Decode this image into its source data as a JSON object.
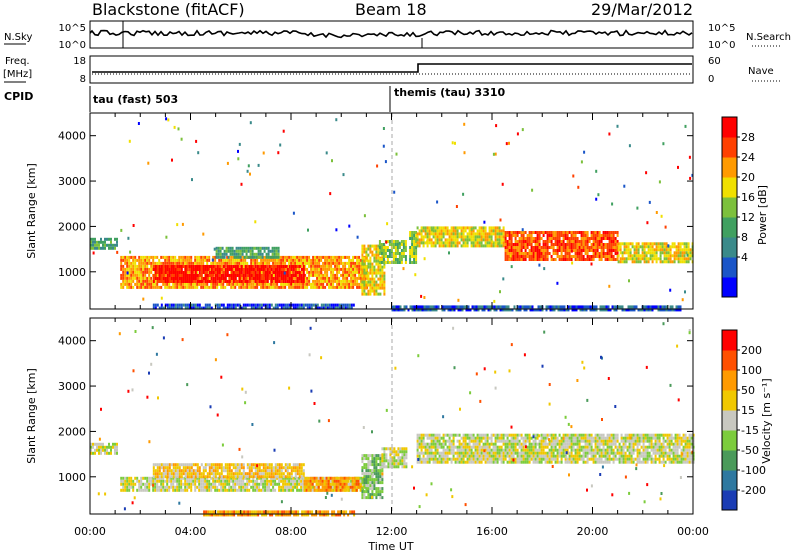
{
  "header": {
    "station": "Blackstone (fitACF)",
    "beam": "Beam 18",
    "date": "29/Mar/2012"
  },
  "top_panels": {
    "nsky_label": "N.Sky",
    "nsearch_label": "N.Search",
    "nsky_ticks": [
      "10^5",
      "10^0"
    ],
    "nsearch_ticks": [
      "10^5",
      "10^0"
    ],
    "freq_label_1": "Freq.",
    "freq_label_2": "[MHz]",
    "freq_ticks": [
      "18",
      "8"
    ],
    "nave_label": "Nave",
    "nave_ticks": [
      "60",
      "0"
    ],
    "cpid_label": "CPID",
    "cpid_segments": [
      "tau (fast) 503",
      "themis (tau) 3310"
    ]
  },
  "chart_data": [
    {
      "type": "heatmap",
      "name": "power",
      "ylabel": "Slant Range [km]",
      "xlabel": "Time UT",
      "x_ticks": [
        "00:00",
        "04:00",
        "08:00",
        "12:00",
        "16:00",
        "20:00",
        "00:00"
      ],
      "xlim_hours": [
        0,
        24
      ],
      "y_ticks": [
        1000,
        2000,
        3000,
        4000
      ],
      "ylim_km": [
        180,
        4500
      ],
      "colorbar": {
        "label": "Power [dB]",
        "ticks": [
          "28",
          "24",
          "20",
          "16",
          "12",
          "8",
          "4"
        ],
        "colors": [
          "#0000ff",
          "#1a55c8",
          "#3a8a8a",
          "#40a060",
          "#7cc03c",
          "#f0e000",
          "#ff9a00",
          "#ff4000",
          "#ff0000"
        ]
      },
      "bands": [
        {
          "t0": 0.0,
          "t1": 1.1,
          "r0": 1550,
          "r1": 1750,
          "level": 3
        },
        {
          "t0": 1.2,
          "t1": 11.0,
          "r0": 650,
          "r1": 1350,
          "level": 6
        },
        {
          "t0": 2.5,
          "t1": 8.5,
          "r0": 800,
          "r1": 1150,
          "level": 8
        },
        {
          "t0": 5.0,
          "t1": 7.5,
          "r0": 1300,
          "r1": 1550,
          "level": 3
        },
        {
          "t0": 10.8,
          "t1": 11.7,
          "r0": 500,
          "r1": 1600,
          "level": 5
        },
        {
          "t0": 11.5,
          "t1": 12.6,
          "r0": 1200,
          "r1": 1700,
          "level": 4
        },
        {
          "t0": 12.7,
          "t1": 13.0,
          "r0": 1200,
          "r1": 1900,
          "level": 4
        },
        {
          "t0": 13.0,
          "t1": 16.5,
          "r0": 1550,
          "r1": 2000,
          "level": 5
        },
        {
          "t0": 16.5,
          "t1": 21.0,
          "r0": 1250,
          "r1": 1900,
          "level": 7
        },
        {
          "t0": 21.0,
          "t1": 24.0,
          "r0": 1250,
          "r1": 1650,
          "level": 5
        },
        {
          "t0": 2.5,
          "t1": 10.5,
          "r0": 180,
          "r1": 300,
          "level": 1
        },
        {
          "t0": 12.0,
          "t1": 23.5,
          "r0": 180,
          "r1": 260,
          "level": 1
        }
      ]
    },
    {
      "type": "heatmap",
      "name": "velocity",
      "ylabel": "Slant Range [km]",
      "xlabel": "Time UT",
      "x_ticks": [
        "00:00",
        "04:00",
        "08:00",
        "12:00",
        "16:00",
        "20:00",
        "00:00"
      ],
      "xlim_hours": [
        0,
        24
      ],
      "y_ticks": [
        1000,
        2000,
        3000,
        4000
      ],
      "ylim_km": [
        180,
        4500
      ],
      "colorbar": {
        "label": "Velocity [m s⁻¹]",
        "ticks": [
          "200",
          "100",
          "50",
          "15",
          "-15",
          "-50",
          "-100",
          "-200"
        ],
        "colors": [
          "#1a3cb4",
          "#2e78a0",
          "#4a9a5a",
          "#7ccc3c",
          "#c8c8c0",
          "#f0c800",
          "#ff9a00",
          "#ff5000",
          "#ff0000"
        ]
      },
      "bands": [
        {
          "t0": 0.0,
          "t1": 1.1,
          "r0": 1550,
          "r1": 1750,
          "level": 4
        },
        {
          "t0": 1.2,
          "t1": 11.0,
          "r0": 700,
          "r1": 1000,
          "level": 4
        },
        {
          "t0": 2.5,
          "t1": 8.5,
          "r0": 1000,
          "r1": 1300,
          "level": 5
        },
        {
          "t0": 8.5,
          "t1": 10.8,
          "r0": 700,
          "r1": 1000,
          "level": 6
        },
        {
          "t0": 10.8,
          "t1": 11.6,
          "r0": 550,
          "r1": 1500,
          "level": 3
        },
        {
          "t0": 11.6,
          "t1": 12.6,
          "r0": 1200,
          "r1": 1650,
          "level": 4
        },
        {
          "t0": 13.0,
          "t1": 24.0,
          "r0": 1300,
          "r1": 1950,
          "level": 4
        },
        {
          "t0": 4.5,
          "t1": 10.5,
          "r0": 180,
          "r1": 260,
          "level": 6
        }
      ]
    }
  ]
}
